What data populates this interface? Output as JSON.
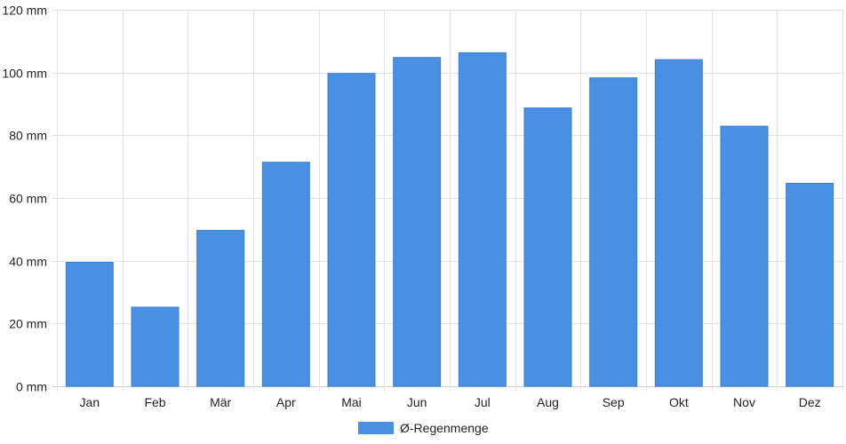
{
  "chart_data": {
    "type": "bar",
    "categories": [
      "Jan",
      "Feb",
      "Mär",
      "Apr",
      "Mai",
      "Jun",
      "Jul",
      "Aug",
      "Sep",
      "Okt",
      "Nov",
      "Dez"
    ],
    "series": [
      {
        "name": "Ø-Regenmenge",
        "values": [
          39.5,
          25.2,
          49.7,
          71.4,
          99.7,
          104.8,
          106.3,
          88.7,
          98.3,
          104.1,
          82.9,
          64.7
        ],
        "color": "#4a90e2"
      }
    ],
    "y_tick_labels": [
      "0 mm",
      "20 mm",
      "40 mm",
      "60 mm",
      "80 mm",
      "100 mm",
      "120 mm"
    ],
    "ylim": [
      0,
      120
    ],
    "y_unit": "mm",
    "grid": true,
    "legend_position": "bottom-center"
  }
}
